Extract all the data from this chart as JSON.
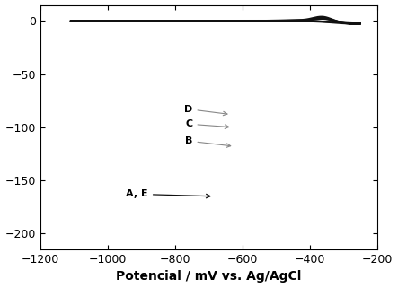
{
  "xlabel": "Potencial / mV vs. Ag/AgCl",
  "xlim": [
    -1200,
    -200
  ],
  "ylim": [
    -215,
    15
  ],
  "yticks": [
    0,
    -50,
    -100,
    -150,
    -200
  ],
  "xticks": [
    -1200,
    -1000,
    -800,
    -600,
    -400,
    -200
  ],
  "background_color": "#ffffff",
  "line_color": "#111111",
  "xlabel_fontsize": 10,
  "scales": [
    1.0,
    0.72,
    0.55,
    0.43
  ],
  "lw_values": [
    1.8,
    1.4,
    1.1,
    0.9
  ]
}
